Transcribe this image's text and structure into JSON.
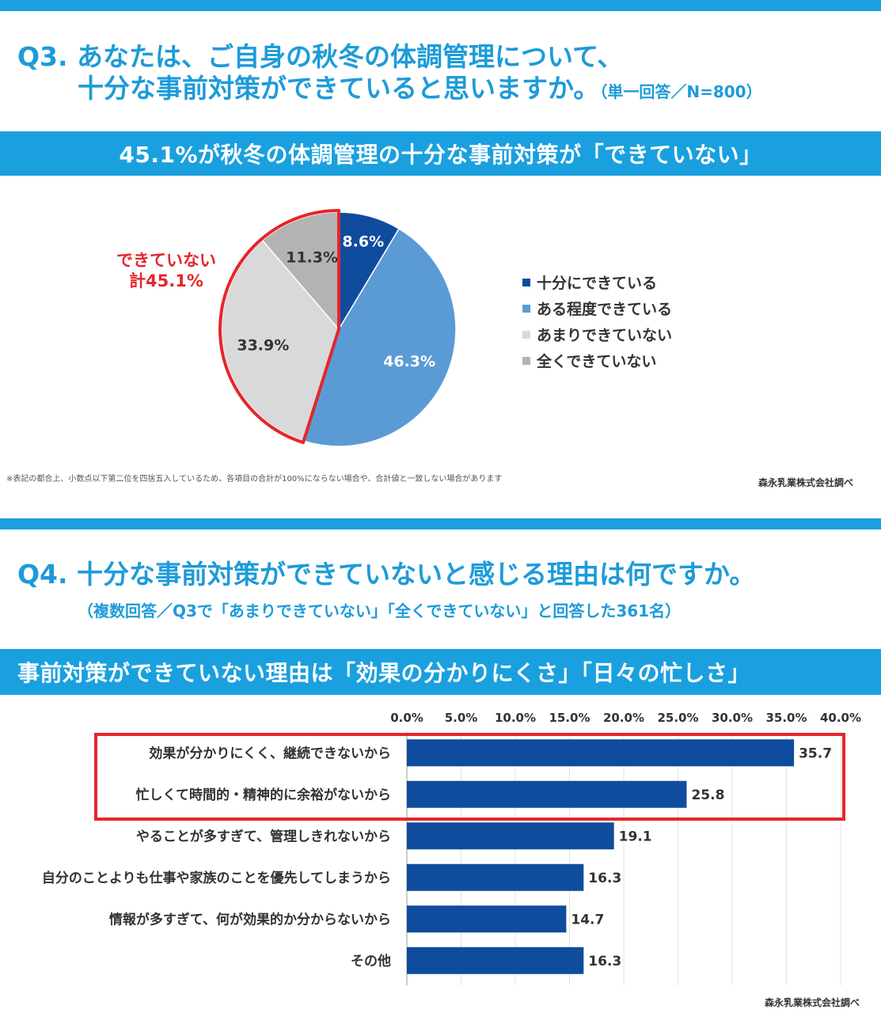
{
  "q3": {
    "title_line1": "Q3. あなたは、ご自身の秋冬の体調管理について、",
    "title_line2": "十分な事前対策ができていると思いますか。",
    "note": "（単一回答／N=800）",
    "banner": "45.1%が秋冬の体調管理の十分な事前対策が「できていない」",
    "callout_line1": "できていない",
    "callout_line2": "計45.1%",
    "footnote": "※表記の都合上、小数点以下第二位を四捨五入しているため、各項目の合計が100%にならない場合や、合計値と一致しない場合があります",
    "credit": "森永乳業株式会社調べ"
  },
  "q4": {
    "title": "Q4. 十分な事前対策ができていないと感じる理由は何ですか。",
    "note": "（複数回答／Q3で「あまりできていない」「全くできていない」と回答した361名）",
    "banner": "事前対策ができていない理由は「効果の分かりにくさ」「日々の忙しさ」",
    "credit": "森永乳業株式会社調べ"
  },
  "chart_data": [
    {
      "type": "pie",
      "categories": [
        "十分にできている",
        "ある程度できている",
        "あまりできていない",
        "全くできていない"
      ],
      "values": [
        8.6,
        46.3,
        33.9,
        11.3
      ],
      "labels": [
        "8.6%",
        "46.3%",
        "33.9%",
        "11.3%"
      ],
      "colors": [
        "#0f4c9e",
        "#5b9bd5",
        "#d9d9d9",
        "#b3b3b3"
      ],
      "highlight": [
        "あまりできていない",
        "全くできていない"
      ],
      "legend": "right"
    },
    {
      "type": "bar",
      "orientation": "horizontal",
      "categories": [
        "効果が分かりにくく、継続できないから",
        "忙しくて時間的・精神的に余裕がないから",
        "やることが多すぎて、管理しきれないから",
        "自分のことよりも仕事や家族のことを優先してしまうから",
        "情報が多すぎて、何が効果的か分からないから",
        "その他"
      ],
      "values": [
        35.7,
        25.8,
        19.1,
        16.3,
        14.7,
        16.3
      ],
      "xlim": [
        0,
        40
      ],
      "ticks": [
        "0.0%",
        "5.0%",
        "10.0%",
        "15.0%",
        "20.0%",
        "25.0%",
        "30.0%",
        "35.0%",
        "40.0%"
      ],
      "tick_values": [
        0,
        5,
        10,
        15,
        20,
        25,
        30,
        35,
        40
      ],
      "color": "#0f4c9e",
      "highlight": [
        "効果が分かりにくく、継続できないから",
        "忙しくて時間的・精神的に余裕がないから"
      ],
      "grid": true
    }
  ]
}
